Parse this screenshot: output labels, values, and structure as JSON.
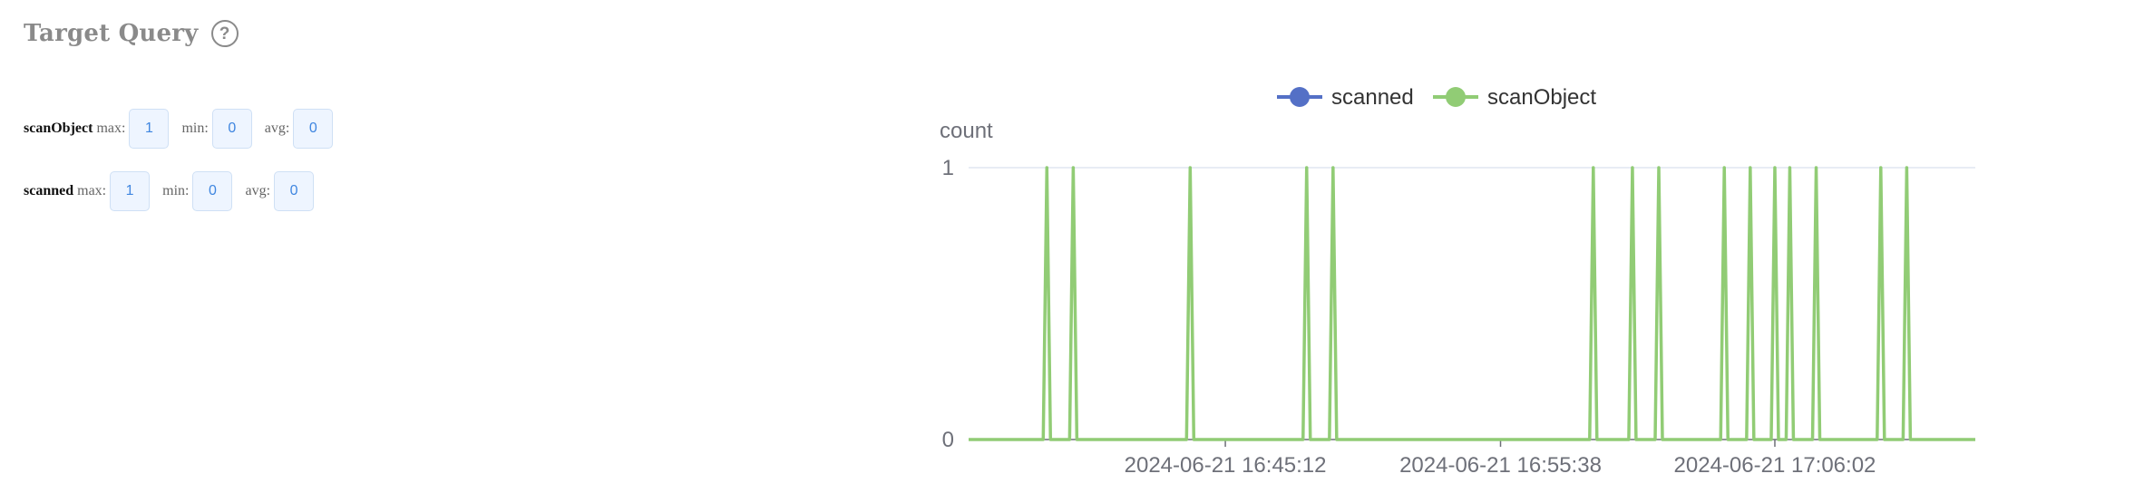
{
  "panel": {
    "title": "Target Query",
    "help_icon": "question-circle-icon"
  },
  "stats": [
    {
      "name": "scanObject",
      "max_label": "max:",
      "max": "1",
      "min_label": "min:",
      "min": "0",
      "avg_label": "avg:",
      "avg": "0"
    },
    {
      "name": "scanned",
      "max_label": "max:",
      "max": "1",
      "min_label": "min:",
      "min": "0",
      "avg_label": "avg:",
      "avg": "0"
    }
  ],
  "chart_data": {
    "type": "line",
    "ylabel": "count",
    "ylim": [
      0,
      1
    ],
    "y_ticks": [
      "0",
      "1"
    ],
    "x_tick_labels": [
      "2024-06-21 16:45:12",
      "2024-06-21 16:55:38",
      "2024-06-21 17:06:02"
    ],
    "x_tick_times": [
      "2024-06-21T16:45:12",
      "2024-06-21T16:55:38",
      "2024-06-21T17:06:02"
    ],
    "xlim": [
      "2024-06-21T16:35:28",
      "2024-06-21T17:13:38"
    ],
    "grid": true,
    "legend_position": "top-center",
    "spike_times": [
      "2024-06-21T16:38:26",
      "2024-06-21T16:39:26",
      "2024-06-21T16:43:52",
      "2024-06-21T16:48:17",
      "2024-06-21T16:49:17",
      "2024-06-21T16:59:09",
      "2024-06-21T17:00:38",
      "2024-06-21T17:01:38",
      "2024-06-21T17:04:07",
      "2024-06-21T17:05:06",
      "2024-06-21T17:06:02",
      "2024-06-21T17:06:36",
      "2024-06-21T17:07:36",
      "2024-06-21T17:10:03",
      "2024-06-21T17:11:02"
    ],
    "series": [
      {
        "name": "scanned",
        "color": "#5470c6"
      },
      {
        "name": "scanObject",
        "color": "#91cc75"
      }
    ]
  }
}
